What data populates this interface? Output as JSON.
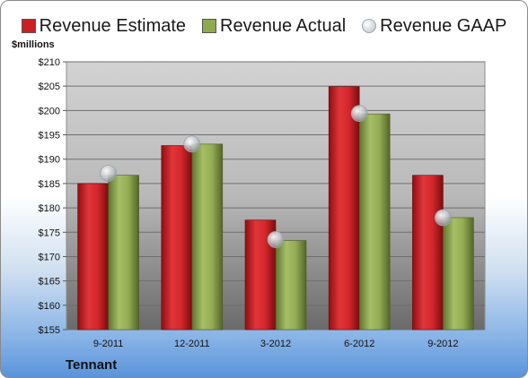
{
  "chart_data": {
    "type": "bar",
    "categories": [
      "9-2011",
      "12-2011",
      "3-2012",
      "6-2012",
      "9-2012"
    ],
    "series": [
      {
        "name": "Revenue Estimate",
        "values": [
          185.0,
          192.8,
          177.5,
          204.9,
          186.7
        ]
      },
      {
        "name": "Revenue Actual",
        "values": [
          186.7,
          193.1,
          173.3,
          199.3,
          178.0
        ]
      },
      {
        "name": "Revenue GAAP",
        "values": [
          187.1,
          193.1,
          173.5,
          199.4,
          178.0
        ]
      }
    ],
    "ylabel": "$millions",
    "ylim": [
      155,
      210
    ],
    "yticks": [
      "$155",
      "$160",
      "$165",
      "$170",
      "$175",
      "$180",
      "$185",
      "$190",
      "$195",
      "$200",
      "$205",
      "$210"
    ],
    "grid": true,
    "legend": "top",
    "colors": {
      "estimate": "#cc1f24",
      "actual": "#8fa94f",
      "gaap": "#c9ccd2"
    }
  },
  "footer": {
    "company": "Tennant"
  }
}
